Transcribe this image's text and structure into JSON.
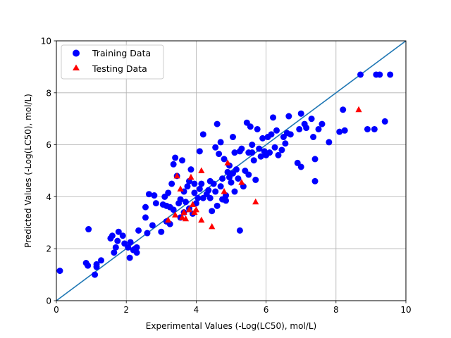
{
  "chart_data": {
    "type": "scatter",
    "title": "",
    "xlabel": "Experimental Values (-Log(LC50), mol/L)",
    "ylabel": "Predicted Values (-Log(LC50), mol/L)",
    "xlim": [
      0,
      10
    ],
    "ylim": [
      0,
      10
    ],
    "xticks": [
      "0",
      "2",
      "4",
      "6",
      "8",
      "10"
    ],
    "yticks": [
      "0",
      "2",
      "4",
      "6",
      "8",
      "10"
    ],
    "grid": true,
    "legend_position": "upper-left",
    "reference_line": {
      "x": [
        0,
        10
      ],
      "y": [
        0,
        10
      ],
      "color": "#1f77b4"
    },
    "series": [
      {
        "name": "Training Data",
        "marker": "circle",
        "color": "#0000ff",
        "points": [
          [
            0.1,
            1.15
          ],
          [
            0.85,
            1.45
          ],
          [
            0.9,
            1.35
          ],
          [
            0.92,
            2.75
          ],
          [
            1.1,
            1.0
          ],
          [
            1.15,
            1.3
          ],
          [
            1.15,
            1.4
          ],
          [
            1.28,
            1.55
          ],
          [
            1.55,
            2.4
          ],
          [
            1.6,
            2.5
          ],
          [
            1.65,
            1.85
          ],
          [
            1.7,
            2.05
          ],
          [
            1.75,
            2.3
          ],
          [
            1.78,
            2.65
          ],
          [
            1.9,
            2.5
          ],
          [
            1.95,
            2.2
          ],
          [
            2.05,
            2.05
          ],
          [
            2.1,
            1.65
          ],
          [
            2.12,
            2.25
          ],
          [
            2.2,
            1.95
          ],
          [
            2.25,
            2.0
          ],
          [
            2.3,
            1.85
          ],
          [
            2.3,
            2.05
          ],
          [
            2.35,
            2.7
          ],
          [
            2.55,
            3.6
          ],
          [
            2.55,
            3.2
          ],
          [
            2.6,
            2.6
          ],
          [
            2.65,
            4.1
          ],
          [
            2.75,
            2.9
          ],
          [
            2.8,
            4.05
          ],
          [
            2.85,
            3.75
          ],
          [
            3.0,
            2.65
          ],
          [
            3.05,
            3.7
          ],
          [
            3.1,
            4.0
          ],
          [
            3.15,
            3.05
          ],
          [
            3.15,
            3.65
          ],
          [
            3.2,
            4.15
          ],
          [
            3.25,
            3.6
          ],
          [
            3.25,
            2.95
          ],
          [
            3.3,
            4.5
          ],
          [
            3.35,
            5.25
          ],
          [
            3.35,
            3.5
          ],
          [
            3.4,
            5.5
          ],
          [
            3.45,
            4.8
          ],
          [
            3.5,
            3.75
          ],
          [
            3.55,
            3.2
          ],
          [
            3.55,
            3.9
          ],
          [
            3.6,
            5.4
          ],
          [
            3.65,
            4.2
          ],
          [
            3.65,
            3.4
          ],
          [
            3.7,
            3.8
          ],
          [
            3.75,
            4.4
          ],
          [
            3.8,
            3.55
          ],
          [
            3.8,
            4.6
          ],
          [
            3.85,
            5.05
          ],
          [
            3.9,
            3.35
          ],
          [
            3.95,
            4.15
          ],
          [
            3.95,
            4.5
          ],
          [
            4.0,
            3.75
          ],
          [
            4.05,
            3.95
          ],
          [
            4.1,
            4.3
          ],
          [
            4.1,
            5.75
          ],
          [
            4.15,
            4.5
          ],
          [
            4.2,
            6.4
          ],
          [
            4.2,
            3.95
          ],
          [
            4.3,
            4.1
          ],
          [
            4.35,
            4.25
          ],
          [
            4.4,
            3.95
          ],
          [
            4.4,
            4.6
          ],
          [
            4.45,
            3.45
          ],
          [
            4.5,
            4.5
          ],
          [
            4.55,
            4.2
          ],
          [
            4.55,
            5.9
          ],
          [
            4.6,
            3.65
          ],
          [
            4.6,
            6.8
          ],
          [
            4.65,
            5.65
          ],
          [
            4.7,
            4.4
          ],
          [
            4.7,
            6.1
          ],
          [
            4.75,
            4.7
          ],
          [
            4.75,
            3.9
          ],
          [
            4.8,
            5.45
          ],
          [
            4.85,
            4.05
          ],
          [
            4.85,
            3.85
          ],
          [
            4.9,
            4.95
          ],
          [
            4.95,
            5.2
          ],
          [
            4.95,
            4.75
          ],
          [
            5.0,
            4.55
          ],
          [
            5.05,
            6.3
          ],
          [
            5.05,
            4.9
          ],
          [
            5.1,
            5.7
          ],
          [
            5.1,
            4.2
          ],
          [
            5.15,
            5.05
          ],
          [
            5.2,
            4.7
          ],
          [
            5.25,
            2.7
          ],
          [
            5.25,
            5.75
          ],
          [
            5.3,
            5.85
          ],
          [
            5.35,
            4.4
          ],
          [
            5.4,
            5.0
          ],
          [
            5.45,
            6.85
          ],
          [
            5.5,
            5.7
          ],
          [
            5.5,
            4.85
          ],
          [
            5.55,
            6.7
          ],
          [
            5.6,
            6.0
          ],
          [
            5.6,
            5.7
          ],
          [
            5.65,
            5.4
          ],
          [
            5.7,
            4.65
          ],
          [
            5.75,
            6.6
          ],
          [
            5.8,
            5.85
          ],
          [
            5.85,
            5.55
          ],
          [
            5.9,
            6.25
          ],
          [
            5.95,
            5.75
          ],
          [
            6.0,
            5.6
          ],
          [
            6.05,
            6.3
          ],
          [
            6.1,
            5.7
          ],
          [
            6.15,
            6.4
          ],
          [
            6.2,
            7.05
          ],
          [
            6.25,
            5.9
          ],
          [
            6.3,
            6.55
          ],
          [
            6.35,
            5.6
          ],
          [
            6.45,
            5.8
          ],
          [
            6.5,
            6.3
          ],
          [
            6.55,
            6.05
          ],
          [
            6.6,
            6.45
          ],
          [
            6.65,
            7.1
          ],
          [
            6.7,
            6.4
          ],
          [
            6.9,
            5.3
          ],
          [
            6.95,
            6.6
          ],
          [
            7.0,
            7.2
          ],
          [
            7.0,
            5.15
          ],
          [
            7.1,
            6.8
          ],
          [
            7.15,
            6.65
          ],
          [
            7.3,
            7.0
          ],
          [
            7.35,
            6.3
          ],
          [
            7.4,
            5.45
          ],
          [
            7.4,
            4.6
          ],
          [
            7.5,
            6.6
          ],
          [
            7.6,
            6.8
          ],
          [
            7.8,
            6.1
          ],
          [
            8.1,
            6.5
          ],
          [
            8.2,
            7.35
          ],
          [
            8.25,
            6.55
          ],
          [
            8.7,
            8.7
          ],
          [
            8.9,
            6.6
          ],
          [
            9.1,
            6.6
          ],
          [
            9.15,
            8.7
          ],
          [
            9.25,
            8.7
          ],
          [
            9.4,
            6.9
          ],
          [
            9.55,
            8.7
          ]
        ]
      },
      {
        "name": "Testing Data",
        "marker": "triangle",
        "color": "#ff0000",
        "points": [
          [
            3.2,
            3.1
          ],
          [
            3.4,
            3.3
          ],
          [
            3.45,
            4.8
          ],
          [
            3.55,
            4.3
          ],
          [
            3.6,
            3.2
          ],
          [
            3.65,
            3.4
          ],
          [
            3.7,
            3.15
          ],
          [
            3.8,
            3.5
          ],
          [
            3.85,
            4.75
          ],
          [
            3.9,
            3.7
          ],
          [
            3.95,
            3.4
          ],
          [
            4.0,
            3.5
          ],
          [
            4.15,
            3.1
          ],
          [
            4.15,
            5.0
          ],
          [
            4.45,
            2.85
          ],
          [
            4.8,
            4.2
          ],
          [
            4.9,
            5.3
          ],
          [
            5.3,
            4.55
          ],
          [
            5.7,
            3.8
          ],
          [
            8.65,
            7.35
          ]
        ]
      }
    ]
  }
}
